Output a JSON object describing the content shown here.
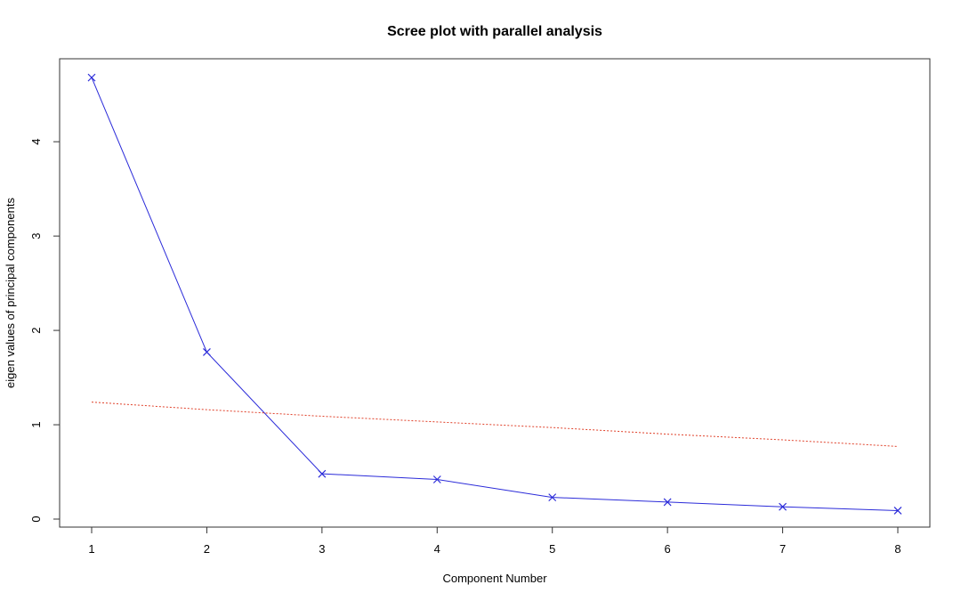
{
  "chart_data": {
    "type": "line",
    "title": "Scree plot with parallel analysis",
    "xlabel": "Component Number",
    "ylabel": "eigen values of principal components",
    "x": [
      1,
      2,
      3,
      4,
      5,
      6,
      7,
      8
    ],
    "xlim": [
      1,
      8
    ],
    "ylim": [
      0,
      4.7
    ],
    "x_ticks": [
      "1",
      "2",
      "3",
      "4",
      "5",
      "6",
      "7",
      "8"
    ],
    "y_ticks": [
      "0",
      "1",
      "2",
      "3",
      "4"
    ],
    "grid": false,
    "legend": "none",
    "series": [
      {
        "style": "solid",
        "marker": "x",
        "color": "#2b2bd9",
        "values": [
          4.68,
          1.77,
          0.48,
          0.42,
          0.23,
          0.18,
          0.13,
          0.09
        ]
      },
      {
        "style": "dotted",
        "marker": "none",
        "color": "#e0412a",
        "values": [
          1.24,
          1.16,
          1.09,
          1.03,
          0.97,
          0.9,
          0.84,
          0.77
        ]
      }
    ]
  }
}
